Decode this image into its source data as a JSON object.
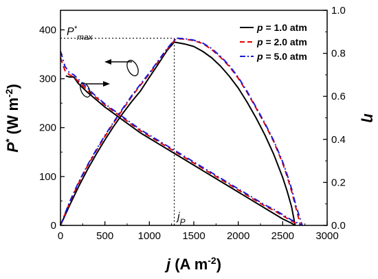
{
  "chart_data": {
    "type": "line",
    "title": "",
    "x_axis": {
      "label_symbol": "j",
      "label_unit_pre": " (A m",
      "label_unit_exp": "-2",
      "label_unit_post": ")",
      "range": [
        0,
        3000
      ],
      "ticks": [
        0,
        500,
        1000,
        1500,
        2000,
        2500,
        3000
      ],
      "tick_labels": [
        "0",
        "500",
        "1000",
        "1500",
        "2000",
        "2500",
        "3000"
      ]
    },
    "y_axis_left": {
      "label_symbol": "P",
      "label_star": "*",
      "label_unit_pre": " (W m",
      "label_unit_exp": "-2",
      "label_unit_post": ")",
      "range": [
        0,
        440
      ],
      "ticks": [
        0,
        100,
        200,
        300,
        400
      ],
      "tick_labels": [
        "0",
        "100",
        "200",
        "300",
        "400"
      ]
    },
    "y_axis_right": {
      "label_symbol": "η",
      "range": [
        0,
        1.0
      ],
      "ticks": [
        0,
        0.2,
        0.4,
        0.6,
        0.8,
        1.0
      ],
      "tick_labels": [
        "0.0",
        "0.2",
        "0.4",
        "0.6",
        "0.8",
        "1.0"
      ]
    },
    "legend": {
      "placement": "top-right",
      "entries": [
        {
          "sym": "p",
          "text": " = 1.0 atm",
          "color": "#000000",
          "dash": "solid"
        },
        {
          "sym": "p",
          "text": " = 2.0 atm",
          "color": "#e00000",
          "dash": "dash"
        },
        {
          "sym": "p",
          "text": " = 5.0 atm",
          "color": "#1a1ad8",
          "dash": "dashdot"
        }
      ]
    },
    "annotations": {
      "pmax_main": "P",
      "pmax_star": "*",
      "pmax_sub": "max",
      "jp_main": "j",
      "jp_sub": "P",
      "pmax_value": 383,
      "jp_value": 1280
    },
    "series": [
      {
        "name": "p = 1.0 atm",
        "quantity": "power density",
        "axis": "left",
        "color": "#000000",
        "dash": "solid",
        "x": [
          0,
          100,
          200,
          300,
          400,
          500,
          600,
          700,
          800,
          900,
          1000,
          1100,
          1200,
          1280,
          1400,
          1500,
          1600,
          1700,
          1800,
          1900,
          2000,
          2100,
          2200,
          2300,
          2400,
          2500,
          2550,
          2600,
          2640
        ],
        "y": [
          0,
          40,
          78,
          113,
          145,
          175,
          203,
          229,
          253,
          275,
          303,
          330,
          358,
          375,
          371,
          366,
          356,
          343,
          326,
          305,
          281,
          252,
          220,
          185,
          145,
          98,
          70,
          38,
          0
        ]
      },
      {
        "name": "p = 2.0 atm",
        "quantity": "power density",
        "axis": "left",
        "color": "#e00000",
        "dash": "dash",
        "x": [
          0,
          100,
          200,
          300,
          400,
          500,
          600,
          700,
          800,
          900,
          1000,
          1100,
          1200,
          1300,
          1400,
          1500,
          1600,
          1700,
          1800,
          1900,
          2000,
          2100,
          2200,
          2300,
          2400,
          2500,
          2550,
          2600,
          2650,
          2700
        ],
        "y": [
          0,
          45,
          85,
          120,
          152,
          182,
          210,
          237,
          263,
          287,
          310,
          335,
          360,
          382,
          381,
          378,
          372,
          360,
          344,
          325,
          301,
          272,
          240,
          207,
          171,
          127,
          100,
          70,
          35,
          0
        ]
      },
      {
        "name": "p = 5.0 atm",
        "quantity": "power density",
        "axis": "left",
        "color": "#1a1ad8",
        "dash": "dashdot",
        "x": [
          0,
          100,
          200,
          300,
          400,
          500,
          600,
          700,
          800,
          900,
          1000,
          1100,
          1200,
          1300,
          1400,
          1500,
          1600,
          1700,
          1800,
          1900,
          2000,
          2100,
          2200,
          2300,
          2400,
          2500,
          2550,
          2600,
          2650,
          2720
        ],
        "y": [
          0,
          47,
          87,
          122,
          154,
          184,
          212,
          239,
          265,
          289,
          312,
          337,
          362,
          383,
          382,
          379,
          373,
          362,
          346,
          327,
          303,
          274,
          242,
          209,
          173,
          130,
          104,
          75,
          40,
          0
        ]
      },
      {
        "name": "p = 1.0 atm",
        "quantity": "efficiency",
        "axis": "right",
        "color": "#000000",
        "dash": "solid",
        "x": [
          60,
          100,
          150,
          200,
          300,
          400,
          500,
          600,
          700,
          800,
          900,
          1000,
          1100,
          1200,
          1300,
          1400,
          1500,
          1600,
          1700,
          1800,
          1900,
          2000,
          2100,
          2200,
          2300,
          2400,
          2500,
          2600,
          2640
        ],
        "y": [
          0.695,
          0.69,
          0.69,
          0.66,
          0.62,
          0.585,
          0.55,
          0.52,
          0.49,
          0.46,
          0.43,
          0.405,
          0.38,
          0.355,
          0.33,
          0.305,
          0.28,
          0.255,
          0.23,
          0.205,
          0.18,
          0.155,
          0.13,
          0.105,
          0.08,
          0.055,
          0.03,
          0.01,
          0.0
        ]
      },
      {
        "name": "p = 2.0 atm",
        "quantity": "efficiency",
        "axis": "right",
        "color": "#e00000",
        "dash": "dash",
        "x": [
          0,
          50,
          100,
          150,
          200,
          300,
          400,
          500,
          600,
          700,
          800,
          900,
          1000,
          1100,
          1200,
          1300,
          1400,
          1500,
          1600,
          1700,
          1800,
          1900,
          2000,
          2100,
          2200,
          2300,
          2400,
          2500,
          2600,
          2700
        ],
        "y": [
          0.78,
          0.72,
          0.7,
          0.69,
          0.67,
          0.63,
          0.595,
          0.56,
          0.53,
          0.5,
          0.47,
          0.44,
          0.415,
          0.39,
          0.365,
          0.34,
          0.315,
          0.29,
          0.265,
          0.24,
          0.215,
          0.19,
          0.165,
          0.14,
          0.115,
          0.09,
          0.07,
          0.045,
          0.02,
          0.0
        ]
      },
      {
        "name": "p = 5.0 atm",
        "quantity": "efficiency",
        "axis": "right",
        "color": "#1a1ad8",
        "dash": "dashdot",
        "x": [
          0,
          50,
          100,
          150,
          200,
          300,
          400,
          500,
          600,
          700,
          800,
          900,
          1000,
          1100,
          1200,
          1300,
          1400,
          1500,
          1600,
          1700,
          1800,
          1900,
          2000,
          2100,
          2200,
          2300,
          2400,
          2500,
          2600,
          2720
        ],
        "y": [
          0.81,
          0.74,
          0.71,
          0.7,
          0.68,
          0.64,
          0.6,
          0.565,
          0.535,
          0.505,
          0.475,
          0.445,
          0.42,
          0.395,
          0.37,
          0.345,
          0.32,
          0.295,
          0.27,
          0.245,
          0.22,
          0.195,
          0.17,
          0.145,
          0.12,
          0.095,
          0.075,
          0.05,
          0.025,
          0.0
        ]
      }
    ]
  }
}
